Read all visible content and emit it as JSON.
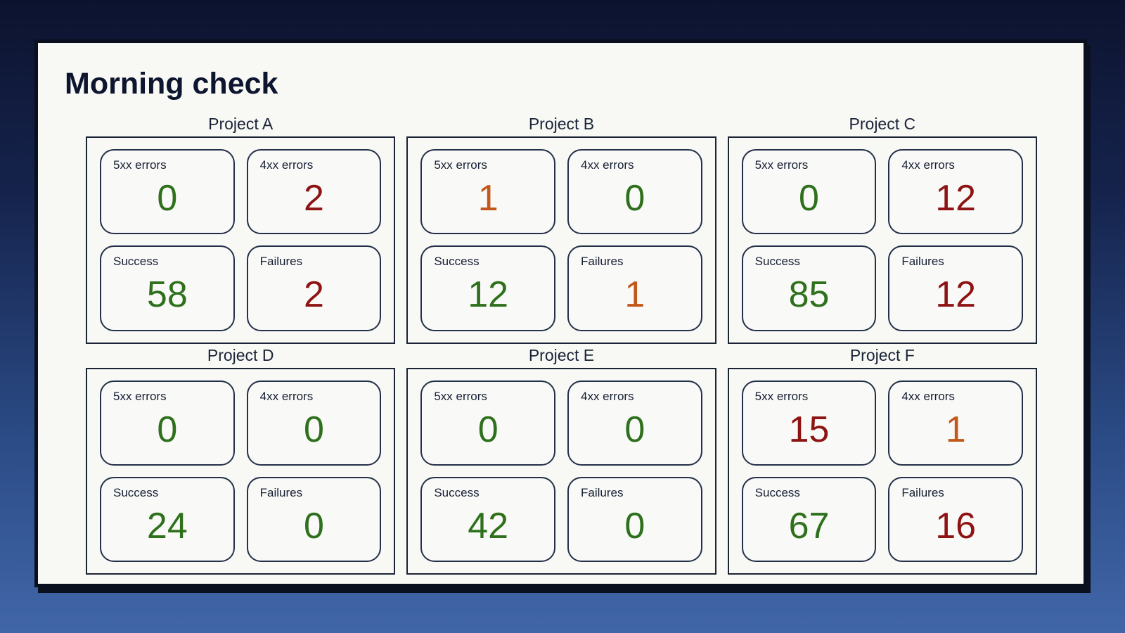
{
  "page": {
    "title": "Morning check"
  },
  "colors": {
    "good": "#2e701c",
    "bad": "#8e1414",
    "warn": "#c2581a"
  },
  "projects": [
    {
      "name": "Project A",
      "metrics": [
        {
          "label": "5xx errors",
          "value": "0",
          "status": "good"
        },
        {
          "label": "4xx errors",
          "value": "2",
          "status": "bad"
        },
        {
          "label": "Success",
          "value": "58",
          "status": "good"
        },
        {
          "label": "Failures",
          "value": "2",
          "status": "bad"
        }
      ]
    },
    {
      "name": "Project B",
      "metrics": [
        {
          "label": "5xx errors",
          "value": "1",
          "status": "warn"
        },
        {
          "label": "4xx errors",
          "value": "0",
          "status": "good"
        },
        {
          "label": "Success",
          "value": "12",
          "status": "good"
        },
        {
          "label": "Failures",
          "value": "1",
          "status": "warn"
        }
      ]
    },
    {
      "name": "Project C",
      "metrics": [
        {
          "label": "5xx errors",
          "value": "0",
          "status": "good"
        },
        {
          "label": "4xx errors",
          "value": "12",
          "status": "bad"
        },
        {
          "label": "Success",
          "value": "85",
          "status": "good"
        },
        {
          "label": "Failures",
          "value": "12",
          "status": "bad"
        }
      ]
    },
    {
      "name": "Project D",
      "metrics": [
        {
          "label": "5xx errors",
          "value": "0",
          "status": "good"
        },
        {
          "label": "4xx errors",
          "value": "0",
          "status": "good"
        },
        {
          "label": "Success",
          "value": "24",
          "status": "good"
        },
        {
          "label": "Failures",
          "value": "0",
          "status": "good"
        }
      ]
    },
    {
      "name": "Project E",
      "metrics": [
        {
          "label": "5xx errors",
          "value": "0",
          "status": "good"
        },
        {
          "label": "4xx errors",
          "value": "0",
          "status": "good"
        },
        {
          "label": "Success",
          "value": "42",
          "status": "good"
        },
        {
          "label": "Failures",
          "value": "0",
          "status": "good"
        }
      ]
    },
    {
      "name": "Project F",
      "metrics": [
        {
          "label": "5xx errors",
          "value": "15",
          "status": "bad"
        },
        {
          "label": "4xx errors",
          "value": "1",
          "status": "warn"
        },
        {
          "label": "Success",
          "value": "67",
          "status": "good"
        },
        {
          "label": "Failures",
          "value": "16",
          "status": "bad"
        }
      ]
    }
  ]
}
